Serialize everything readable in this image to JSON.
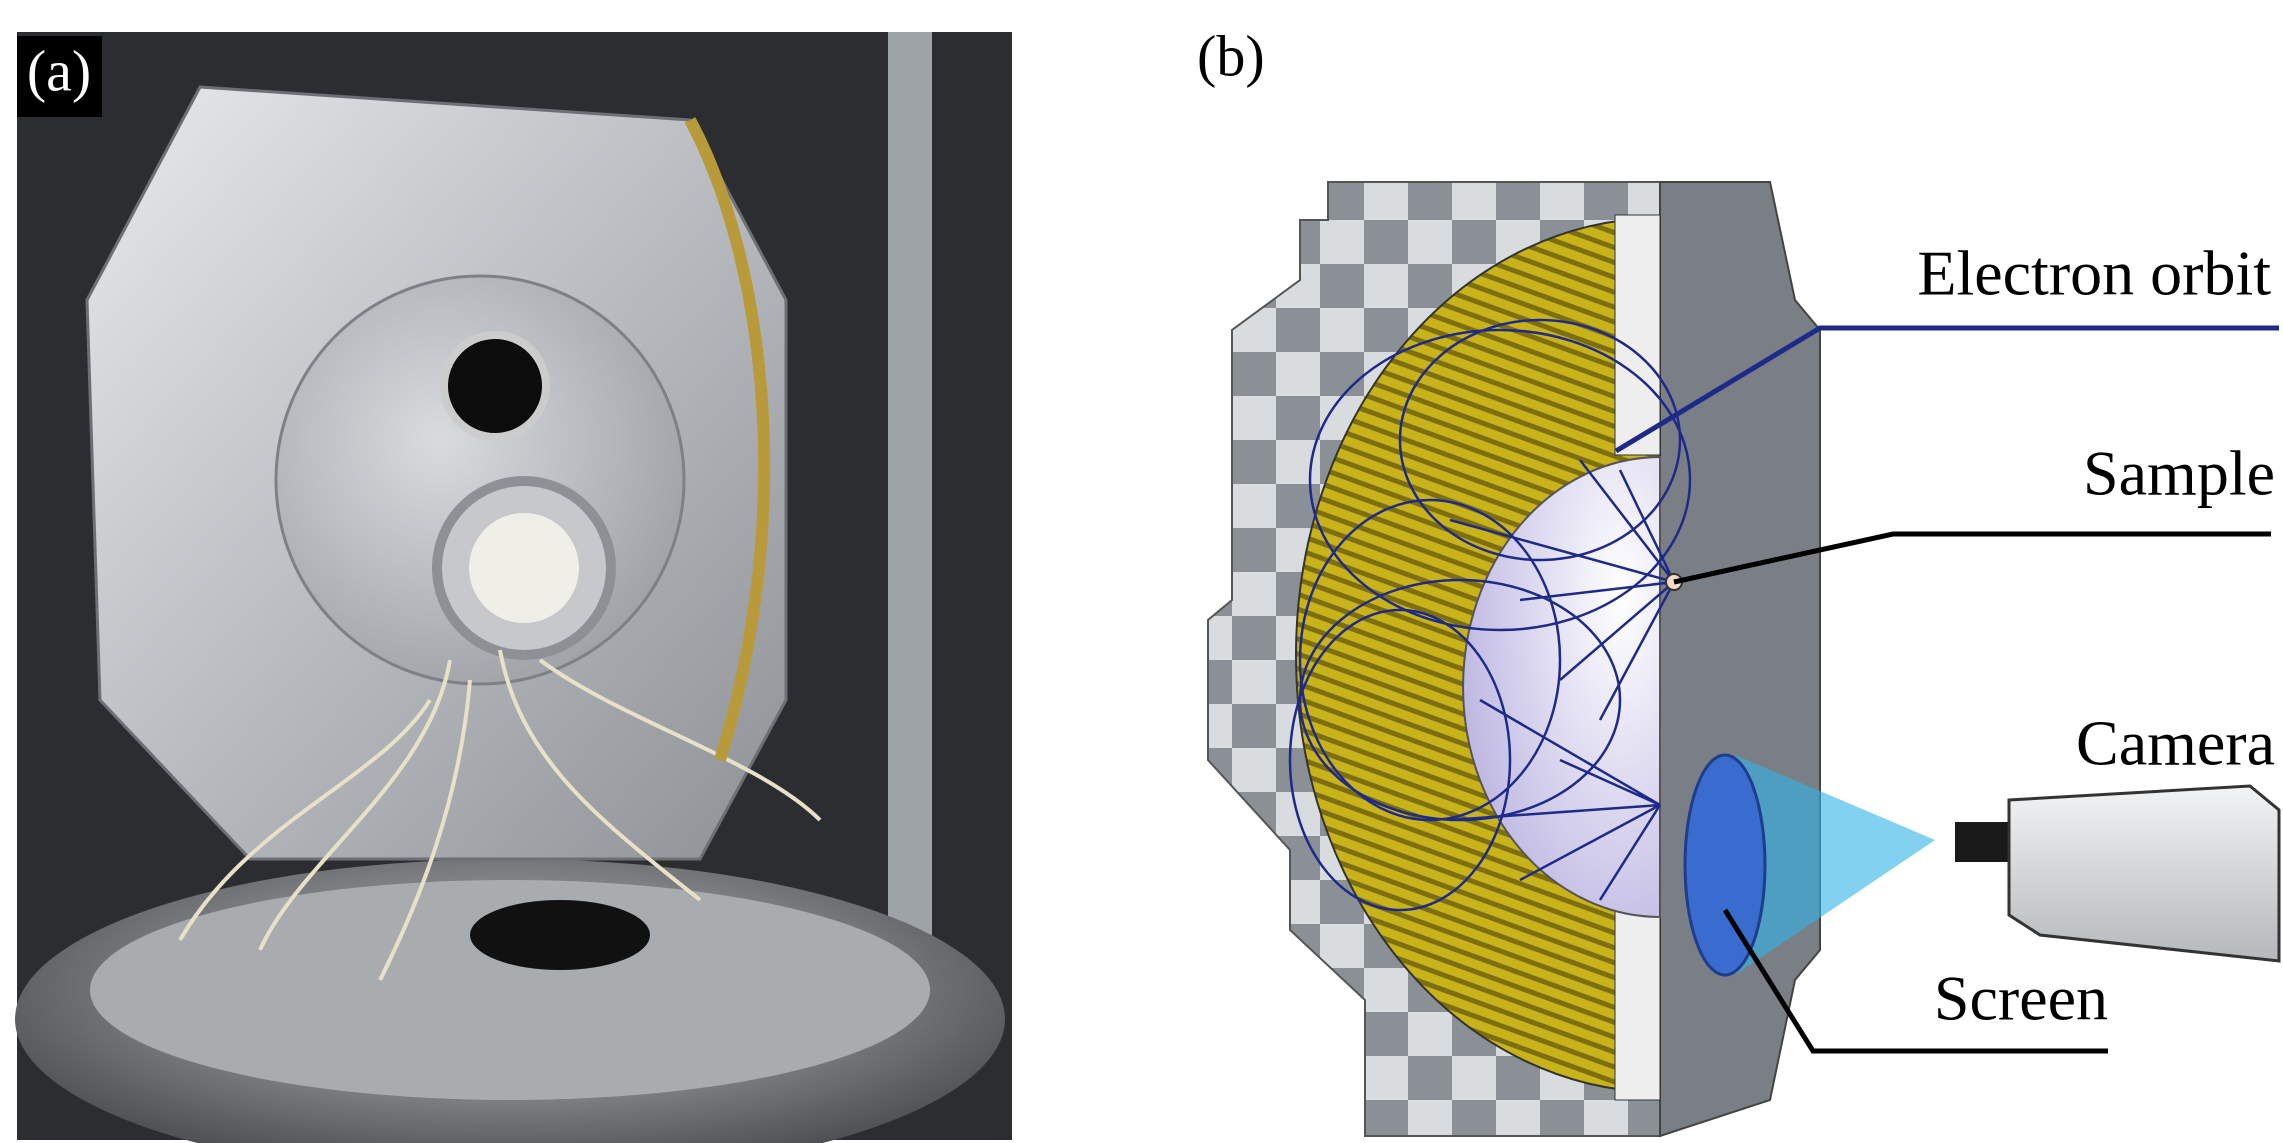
{
  "panel_a": {
    "label": "(a)"
  },
  "panel_b": {
    "label": "(b)",
    "callouts": [
      "Electron orbit",
      "Sample",
      "Camera",
      "Screen"
    ]
  }
}
